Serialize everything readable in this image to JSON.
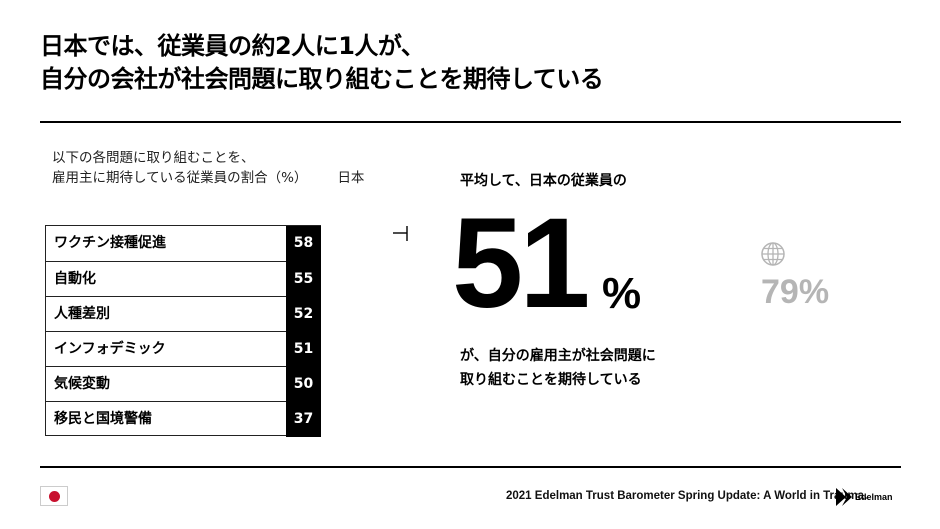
{
  "title": {
    "line1": "日本では、従業員の約2人に1人が、",
    "line2": "自分の会社が社会問題に取り組むことを期待している"
  },
  "subtitle": {
    "line1": "以下の各問題に取り組むことを、",
    "line2": "雇用主に期待している従業員の割合（%）",
    "country": "日本"
  },
  "chart_data": {
    "type": "table",
    "categories": [
      "ワクチン接種促進",
      "自動化",
      "人種差別",
      "インフォデミック",
      "気候変動",
      "移民と国境警備"
    ],
    "values": [
      58,
      55,
      52,
      51,
      50,
      37
    ]
  },
  "summary": {
    "label": "平均して、日本の従業員の",
    "value": "51",
    "unit": "%",
    "desc_line1": "が、自分の雇用主が社会問題に",
    "desc_line2": "取り組むことを期待している"
  },
  "global": {
    "icon": "globe-icon",
    "value": "79%"
  },
  "footer": {
    "flag_icon": "japan-flag-icon",
    "source": "2021 Edelman Trust Barometer Spring Update: A World in Trauma.",
    "logo_text": "Edelman"
  },
  "colors": {
    "text": "#000000",
    "value_cell_bg": "#000000",
    "global_value": "#b5b5b5",
    "flag_red": "#c8102e"
  }
}
